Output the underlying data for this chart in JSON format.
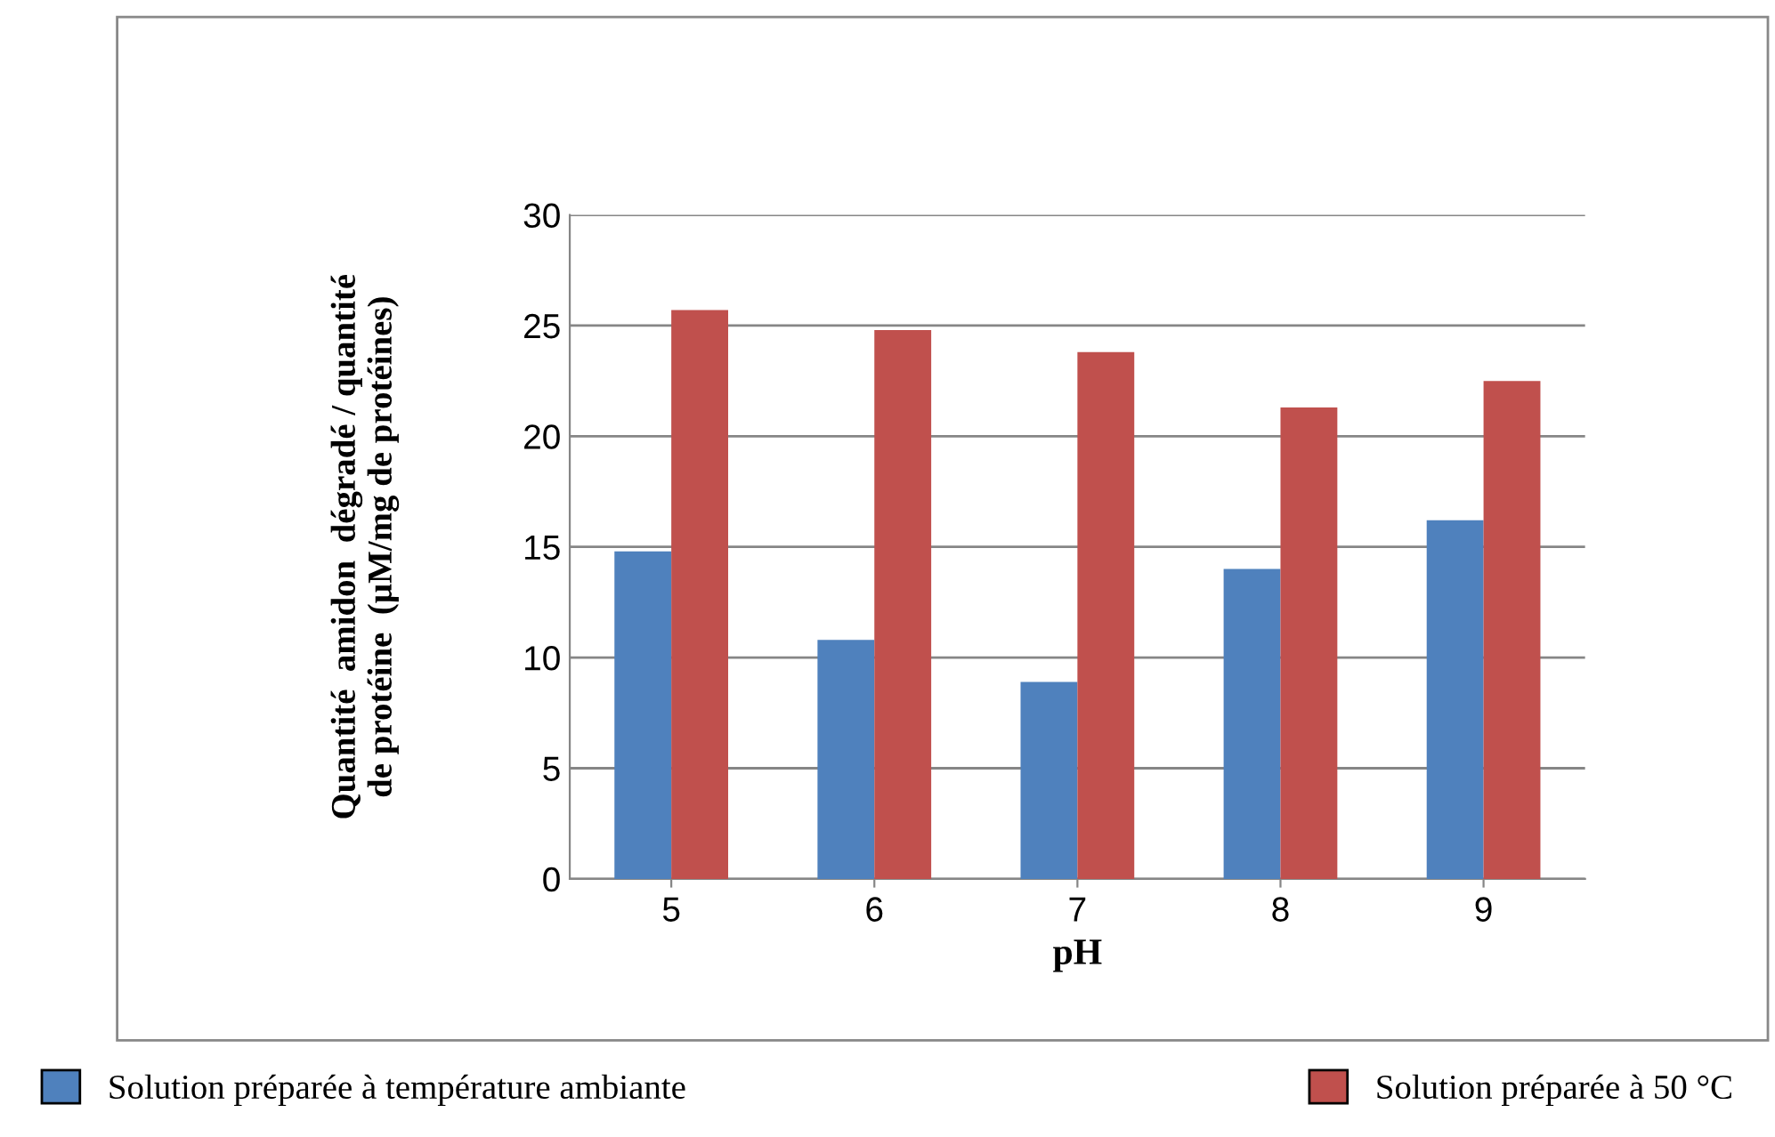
{
  "chart_data": {
    "type": "bar",
    "xlabel": "pH",
    "ylabel": "Quantité  amidon  dégradé / quantité\nde protéine  (µM/mg de protéines)",
    "categories": [
      "5",
      "6",
      "7",
      "8",
      "9"
    ],
    "series": [
      {
        "name": "Solution préparée à température ambiante",
        "color": "#4f81bd",
        "values": [
          14.8,
          10.8,
          8.9,
          14.0,
          16.2
        ]
      },
      {
        "name": "Solution préparée à 50 °C",
        "color": "#c0504d",
        "values": [
          25.7,
          24.8,
          23.8,
          21.3,
          22.5
        ]
      }
    ],
    "ylim": [
      0,
      30
    ],
    "yticks": [
      0,
      5,
      10,
      15,
      20,
      25,
      30
    ],
    "grid": "y",
    "legend": "bottom"
  }
}
